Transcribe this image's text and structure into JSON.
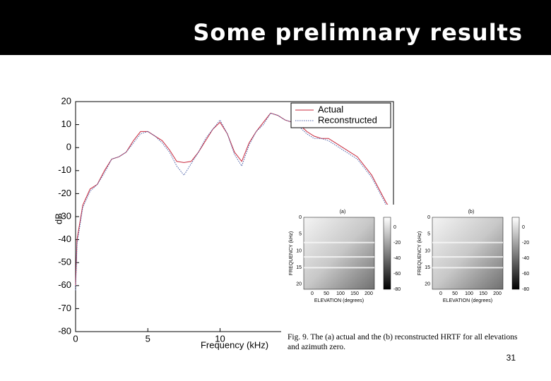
{
  "slide": {
    "title": "Some prelimnary results",
    "page_number": "31"
  },
  "chart_data": {
    "type": "line",
    "x_label": "Frequency (kHz)",
    "y_label": "dB",
    "x": [
      0,
      0.1,
      0.5,
      1,
      1.5,
      2,
      2.5,
      3,
      3.5,
      4,
      4.5,
      5,
      5.5,
      6,
      6.5,
      7,
      7.5,
      8,
      8.5,
      9,
      9.5,
      10,
      10.5,
      11,
      11.5,
      12,
      12.5,
      13,
      13.5,
      14,
      14.5,
      15,
      15.5,
      16,
      16.5,
      17,
      17.5,
      18,
      18.5,
      19,
      19.5,
      20,
      20.5,
      21,
      21.5,
      22
    ],
    "series": [
      {
        "name": "Actual",
        "color": "#c8283c",
        "style": "solid",
        "values": [
          -60,
          -40,
          -25,
          -18,
          -16,
          -10,
          -5,
          -4,
          -2,
          3,
          7,
          7,
          5,
          3,
          -1,
          -6,
          -6.5,
          -6,
          -2,
          3,
          8,
          11,
          6,
          -2,
          -6,
          2,
          7,
          11,
          15,
          14,
          12,
          11,
          10,
          7,
          5,
          4,
          4,
          2,
          0,
          -2,
          -4,
          -8,
          -12,
          -18,
          -24,
          -28
        ]
      },
      {
        "name": "Reconstructed",
        "color": "#4a5fa8",
        "style": "dotted",
        "values": [
          -62,
          -42,
          -26,
          -19,
          -16,
          -11,
          -5,
          -4,
          -2,
          2,
          6,
          7,
          5,
          2,
          -2,
          -8,
          -12,
          -7,
          -2,
          4,
          8,
          12,
          6,
          -3,
          -8,
          1,
          7,
          10,
          15,
          14,
          12,
          11,
          9,
          6,
          4,
          4,
          3,
          1,
          -1,
          -3,
          -5,
          -9,
          -13,
          -19,
          -25,
          -29
        ]
      }
    ],
    "xlim": [
      0,
      22
    ],
    "xticks": [
      0,
      5,
      10
    ],
    "ylim": [
      -80,
      20
    ],
    "yticks": [
      20,
      10,
      0,
      -10,
      -20,
      -30,
      -40,
      -50,
      -60,
      -70,
      -80
    ],
    "legend": "top-right"
  },
  "figure": {
    "panels": [
      {
        "label": "(a)",
        "y_label": "FREQUENCY (kHz)",
        "x_label": "ELEVATION (degrees)"
      },
      {
        "label": "(b)",
        "y_label": "FREQUENCY (kHz)",
        "x_label": "ELEVATION (degrees)"
      }
    ],
    "y_ticks": [
      0,
      5,
      10,
      15,
      20
    ],
    "x_ticks": [
      0,
      50,
      100,
      150,
      200
    ],
    "colorbar_ticks": [
      0,
      -20,
      -40,
      -60,
      -80
    ],
    "caption": "Fig. 9.  The (a) actual and the (b) reconstructed HRTF for all elevations and azimuth zero."
  }
}
